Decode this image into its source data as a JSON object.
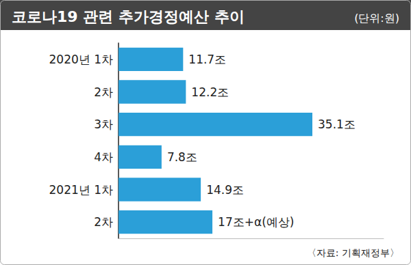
{
  "chart_data": {
    "type": "bar",
    "title": "코로나19 관련 추가경정예산 추이",
    "subtitle": "(단위:원)",
    "source": "〈자료: 기획재정부〉",
    "categories": [
      "2020년 1차",
      "2차",
      "3차",
      "4차",
      "2021년 1차",
      "2차"
    ],
    "values": [
      11.7,
      12.2,
      35.1,
      7.8,
      14.9,
      17
    ],
    "value_labels": [
      "11.7조",
      "12.2조",
      "35.1조",
      "7.8조",
      "14.9조",
      "17조+α(예상)"
    ],
    "color": "#2b9fd8",
    "orientation": "horizontal",
    "data_labels": true,
    "tick_labels": "y",
    "grid": false,
    "xlim": [
      0,
      48
    ]
  }
}
